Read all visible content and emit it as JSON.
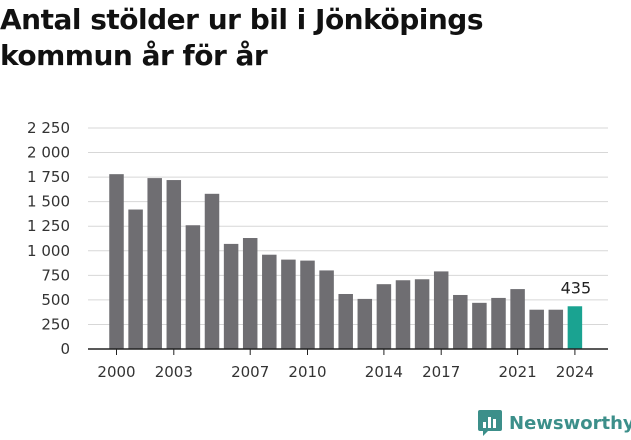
{
  "title": "Antal stölder ur bil i Jönköpings kommun år för år",
  "brand": {
    "name": "Newsworthy",
    "color": "#3c8f8a",
    "icon": "bar-chart-logo-icon"
  },
  "colors": {
    "bar": "#6f6e72",
    "highlight": "#1aa391",
    "grid": "#d7d7d7",
    "axis": "#222222"
  },
  "chart_data": {
    "type": "bar",
    "title": "Antal stölder ur bil i Jönköpings kommun år för år",
    "xlabel": "",
    "ylabel": "",
    "categories": [
      "2000",
      "2001",
      "2002",
      "2003",
      "2004",
      "2005",
      "2006",
      "2007",
      "2008",
      "2009",
      "2010",
      "2011",
      "2012",
      "2013",
      "2014",
      "2015",
      "2016",
      "2017",
      "2018",
      "2019",
      "2020",
      "2021",
      "2022",
      "2023",
      "2024"
    ],
    "values": [
      1780,
      1420,
      1740,
      1720,
      1260,
      1580,
      1070,
      1130,
      960,
      910,
      900,
      800,
      560,
      510,
      660,
      700,
      710,
      790,
      550,
      470,
      520,
      610,
      400,
      400,
      435
    ],
    "highlight_index": 24,
    "data_labels": [
      {
        "index": 24,
        "text": "435"
      }
    ],
    "x_tick_labels": [
      {
        "index": 0,
        "text": "2000"
      },
      {
        "index": 3,
        "text": "2003"
      },
      {
        "index": 7,
        "text": "2007"
      },
      {
        "index": 10,
        "text": "2010"
      },
      {
        "index": 14,
        "text": "2014"
      },
      {
        "index": 17,
        "text": "2017"
      },
      {
        "index": 21,
        "text": "2021"
      },
      {
        "index": 24,
        "text": "2024"
      }
    ],
    "y_ticks": [
      {
        "value": 0,
        "text": "0"
      },
      {
        "value": 250,
        "text": "250"
      },
      {
        "value": 500,
        "text": "500"
      },
      {
        "value": 750,
        "text": "750"
      },
      {
        "value": 1000,
        "text": "1 000"
      },
      {
        "value": 1250,
        "text": "1 250"
      },
      {
        "value": 1500,
        "text": "1 500"
      },
      {
        "value": 1750,
        "text": "1 750"
      },
      {
        "value": 2000,
        "text": "2 000"
      },
      {
        "value": 2250,
        "text": "2 250"
      }
    ],
    "ylim": [
      0,
      2250
    ],
    "grid": true,
    "legend": "none"
  }
}
